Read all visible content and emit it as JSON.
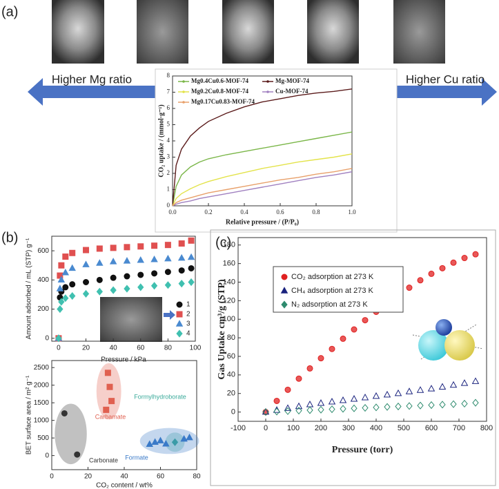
{
  "panel_labels": [
    "(a)",
    "(b)",
    "(c)"
  ],
  "arrows": {
    "left": "Higher Mg ratio",
    "right": "Higher Cu ratio"
  },
  "chart_data": [
    {
      "type": "line",
      "xlabel": "Relative pressure / (P/P₀)",
      "ylabel": "CO₂ uptake / (mmol·g⁻¹)",
      "x": [
        0,
        0.02,
        0.05,
        0.1,
        0.15,
        0.2,
        0.3,
        0.4,
        0.5,
        0.6,
        0.7,
        0.8,
        0.9,
        1.0
      ],
      "xlim": [
        0,
        1
      ],
      "ylim": [
        0,
        8
      ],
      "xticks": [
        {
          "value": 0,
          "label": "0.0"
        },
        {
          "value": 0.2,
          "label": "0.2"
        },
        {
          "value": 0.4,
          "label": "0.4"
        },
        {
          "value": 0.6,
          "label": "0.6"
        },
        {
          "value": 0.8,
          "label": "0.8"
        },
        {
          "value": 1.0,
          "label": "1.0"
        }
      ],
      "yticks": [
        0,
        1,
        2,
        3,
        4,
        5,
        6,
        7,
        8
      ],
      "series": [
        {
          "name": "Mg0.4Cu0.6-MOF-74",
          "color": "#7ab648",
          "values": [
            0,
            1.2,
            1.9,
            2.4,
            2.7,
            2.9,
            3.15,
            3.35,
            3.55,
            3.75,
            3.95,
            4.15,
            4.35,
            4.55
          ]
        },
        {
          "name": "Mg-MOF-74",
          "color": "#5a1a1a",
          "values": [
            0,
            2.5,
            3.5,
            4.3,
            4.8,
            5.2,
            5.7,
            6.1,
            6.4,
            6.6,
            6.8,
            6.95,
            7.05,
            7.2
          ]
        },
        {
          "name": "Mg0.2Cu0.8-MOF-74",
          "color": "#e3e34a",
          "values": [
            0,
            0.45,
            0.75,
            1.05,
            1.3,
            1.5,
            1.8,
            2.05,
            2.3,
            2.5,
            2.7,
            2.85,
            3.0,
            3.2
          ]
        },
        {
          "name": "Cu-MOF-74",
          "color": "#a080c0",
          "values": [
            0,
            0.1,
            0.2,
            0.3,
            0.45,
            0.55,
            0.75,
            0.95,
            1.15,
            1.35,
            1.55,
            1.75,
            1.9,
            2.1
          ]
        },
        {
          "name": "Mg0.17Cu0.83-MOF-74",
          "color": "#e8a06a",
          "values": [
            0,
            0.2,
            0.35,
            0.5,
            0.65,
            0.8,
            1.0,
            1.2,
            1.4,
            1.6,
            1.75,
            1.95,
            2.1,
            2.3
          ]
        }
      ]
    },
    {
      "type": "scatter",
      "xlabel": "Pressure / kPa",
      "ylabel": "Amount adsorbed  / mL (STP) g⁻¹",
      "x": [
        0,
        1,
        2,
        5,
        10,
        20,
        30,
        40,
        50,
        60,
        70,
        80,
        90,
        97
      ],
      "xlim": [
        -5,
        100
      ],
      "ylim": [
        -20,
        700
      ],
      "xticks": [
        0,
        20,
        40,
        60,
        80,
        100
      ],
      "yticks": [
        0,
        200,
        400,
        600
      ],
      "series": [
        {
          "name": "1",
          "color": "#111111",
          "marker": "circle",
          "values": [
            0,
            280,
            320,
            350,
            370,
            385,
            400,
            415,
            425,
            435,
            445,
            455,
            465,
            480
          ]
        },
        {
          "name": "2",
          "color": "#e05050",
          "marker": "square",
          "values": [
            0,
            430,
            500,
            560,
            585,
            605,
            615,
            620,
            625,
            630,
            635,
            640,
            650,
            670
          ]
        },
        {
          "name": "3",
          "color": "#4a8ad0",
          "marker": "triangle",
          "values": [
            0,
            340,
            400,
            450,
            480,
            505,
            515,
            525,
            530,
            535,
            540,
            545,
            550,
            555
          ]
        },
        {
          "name": "4",
          "color": "#40c0b0",
          "marker": "diamond",
          "values": [
            0,
            200,
            250,
            275,
            290,
            305,
            320,
            330,
            340,
            350,
            360,
            365,
            375,
            385
          ]
        }
      ]
    },
    {
      "type": "scatter",
      "xlabel": "CO₂ content / wt%",
      "ylabel": "BET surface area / m² g⁻¹",
      "xlim": [
        0,
        80
      ],
      "ylim": [
        -400,
        2700
      ],
      "xticks": [
        0,
        20,
        40,
        60,
        80
      ],
      "yticks": [
        0,
        500,
        1000,
        1500,
        2000,
        2500
      ],
      "series": [
        {
          "name": "Carbonate",
          "color": "#333333",
          "marker": "circle",
          "x": [
            7,
            14
          ],
          "values": [
            1200,
            30
          ]
        },
        {
          "name": "Carbamate",
          "color": "#e06050",
          "marker": "square",
          "x": [
            31,
            32,
            33,
            30
          ],
          "values": [
            2350,
            1950,
            1550,
            1300
          ]
        },
        {
          "name": "Formylhydroborate",
          "color": "#3aaa9a",
          "marker": "diamond",
          "x": [
            68
          ],
          "values": [
            380
          ]
        },
        {
          "name": "Formate",
          "color": "#3a7ac8",
          "marker": "triangle",
          "x": [
            54,
            57,
            60,
            63,
            73,
            76
          ],
          "values": [
            320,
            380,
            420,
            330,
            470,
            510
          ]
        }
      ]
    },
    {
      "type": "scatter",
      "xlabel": "Pressure (torr)",
      "ylabel": "Gas Uptake cm³/g (STP)",
      "x": [
        0,
        40,
        80,
        120,
        160,
        200,
        240,
        280,
        320,
        360,
        400,
        440,
        480,
        520,
        560,
        600,
        640,
        680,
        720,
        760
      ],
      "xlim": [
        -100,
        800
      ],
      "ylim": [
        -10,
        188
      ],
      "xticks": [
        -100,
        0,
        100,
        200,
        300,
        400,
        500,
        600,
        700,
        800
      ],
      "yticks": [
        0,
        20,
        40,
        60,
        80,
        100,
        120,
        140,
        160,
        180
      ],
      "series": [
        {
          "name": "CO₂ adsorption at 273 K",
          "color": "#e02020",
          "marker": "circle",
          "values": [
            0,
            12,
            24,
            36,
            47,
            58,
            68,
            79,
            89,
            99,
            108,
            117,
            126,
            134,
            142,
            149,
            155,
            161,
            166,
            170
          ]
        },
        {
          "name": "CH₄ adsorption at 273 K",
          "color": "#1a237e",
          "marker": "triangle",
          "values": [
            0,
            2,
            4,
            6,
            8,
            9.5,
            11,
            12.5,
            14,
            15.5,
            17,
            18.5,
            20,
            22,
            23.5,
            25,
            27,
            29,
            31,
            33
          ]
        },
        {
          "name": "N₂ adsorption at 273 K",
          "color": "#2e8b6e",
          "marker": "diamond",
          "values": [
            0,
            0.5,
            1,
            1.5,
            2,
            2.5,
            3,
            3.5,
            4,
            4.5,
            5,
            5.5,
            6,
            6.5,
            7,
            7.5,
            8,
            8.5,
            9,
            10
          ]
        }
      ]
    }
  ]
}
